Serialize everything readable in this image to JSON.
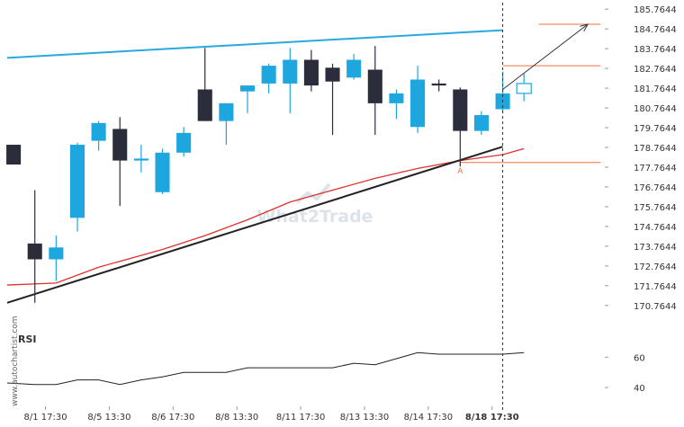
{
  "watermark_brand": "What2Trade",
  "vertical_credit": "www.autochartist.com",
  "point_label": "A",
  "colors": {
    "bull": "#1ea6df",
    "bear": "#2b2d3a",
    "resistance": "#2aa8e0",
    "support": "#222222",
    "ma": "#e03030",
    "level": "#f07040",
    "rsi": "#222222"
  },
  "chart_data": [
    {
      "type": "candlestick",
      "y_ticks": [
        185.7644,
        184.7644,
        183.7644,
        182.7644,
        181.7644,
        180.7644,
        179.7644,
        178.7644,
        177.7644,
        176.7644,
        175.7644,
        174.7644,
        173.7644,
        172.7644,
        171.7644,
        170.7644
      ],
      "ylim": [
        170.3,
        186.0
      ],
      "x_tick_labels": [
        "8/1 17:30",
        "8/5 13:30",
        "8/6 17:30",
        "8/8 13:30",
        "8/11 17:30",
        "8/13 13:30",
        "8/14 17:30",
        "8/18 17:30"
      ],
      "x_tick_positions": [
        1.5,
        4.5,
        7.5,
        10.5,
        13.5,
        16.5,
        19.5,
        22.5
      ],
      "highlight_tick": "8/18 17:30",
      "x_range": [
        -0.3,
        27.8
      ],
      "candles": [
        {
          "x": 0,
          "o": 178.9,
          "h": 178.9,
          "l": 177.9,
          "c": 177.9
        },
        {
          "x": 1,
          "o": 173.9,
          "h": 176.6,
          "l": 170.9,
          "c": 173.1
        },
        {
          "x": 2,
          "o": 173.1,
          "h": 174.3,
          "l": 172.0,
          "c": 173.7
        },
        {
          "x": 3,
          "o": 175.2,
          "h": 179.0,
          "l": 174.5,
          "c": 178.9
        },
        {
          "x": 4,
          "o": 179.1,
          "h": 180.1,
          "l": 178.6,
          "c": 180.0
        },
        {
          "x": 5,
          "o": 179.7,
          "h": 180.3,
          "l": 175.8,
          "c": 178.1
        },
        {
          "x": 6,
          "o": 178.1,
          "h": 178.9,
          "l": 177.5,
          "c": 178.2
        },
        {
          "x": 7,
          "o": 176.5,
          "h": 178.7,
          "l": 176.4,
          "c": 178.5
        },
        {
          "x": 8,
          "o": 178.5,
          "h": 179.8,
          "l": 178.3,
          "c": 179.5
        },
        {
          "x": 9,
          "o": 181.7,
          "h": 183.8,
          "l": 180.1,
          "c": 180.1
        },
        {
          "x": 10,
          "o": 180.1,
          "h": 181.0,
          "l": 178.9,
          "c": 181.0
        },
        {
          "x": 11,
          "o": 181.6,
          "h": 181.9,
          "l": 180.5,
          "c": 181.9
        },
        {
          "x": 12,
          "o": 182.0,
          "h": 183.0,
          "l": 181.5,
          "c": 182.9
        },
        {
          "x": 13,
          "o": 182.0,
          "h": 183.8,
          "l": 180.5,
          "c": 183.2
        },
        {
          "x": 14,
          "o": 183.2,
          "h": 183.7,
          "l": 181.6,
          "c": 181.9
        },
        {
          "x": 15,
          "o": 182.8,
          "h": 183.0,
          "l": 179.4,
          "c": 182.1
        },
        {
          "x": 16,
          "o": 182.3,
          "h": 183.5,
          "l": 182.2,
          "c": 183.2
        },
        {
          "x": 17,
          "o": 182.7,
          "h": 183.9,
          "l": 179.4,
          "c": 181.0
        },
        {
          "x": 18,
          "o": 181.0,
          "h": 181.7,
          "l": 180.2,
          "c": 181.5
        },
        {
          "x": 19,
          "o": 179.8,
          "h": 182.9,
          "l": 179.5,
          "c": 182.2
        },
        {
          "x": 20,
          "o": 182.0,
          "h": 182.2,
          "l": 181.6,
          "c": 181.9
        },
        {
          "x": 21,
          "o": 181.7,
          "h": 181.8,
          "l": 177.8,
          "c": 179.6
        },
        {
          "x": 22,
          "o": 179.6,
          "h": 180.6,
          "l": 179.4,
          "c": 180.4
        },
        {
          "x": 23,
          "o": 180.7,
          "h": 182.6,
          "l": 180.5,
          "c": 181.5
        },
        {
          "x": 24,
          "o": 181.5,
          "h": 182.5,
          "l": 181.1,
          "c": 182.0,
          "projected": true
        }
      ],
      "resistance_line": [
        [
          -0.3,
          183.3
        ],
        [
          23.0,
          184.7
        ]
      ],
      "support_line": [
        [
          -0.3,
          170.9
        ],
        [
          23.0,
          178.8
        ]
      ],
      "moving_average": [
        [
          -0.3,
          171.8
        ],
        [
          2,
          171.9
        ],
        [
          4,
          172.7
        ],
        [
          6,
          173.3
        ],
        [
          7,
          173.6
        ],
        [
          9,
          174.3
        ],
        [
          11,
          175.1
        ],
        [
          13,
          176.0
        ],
        [
          15,
          176.6
        ],
        [
          17,
          177.2
        ],
        [
          19,
          177.7
        ],
        [
          21,
          178.1
        ],
        [
          23,
          178.4
        ],
        [
          24,
          178.7
        ]
      ],
      "levels": [
        {
          "price": 185.0,
          "x_start": 24.7,
          "x_end": 27.6
        },
        {
          "price": 182.9,
          "x_start": 23.0,
          "x_end": 27.6
        },
        {
          "price": 178.0,
          "x_start": 21.0,
          "x_end": 27.6
        }
      ],
      "projection_arrow": [
        [
          23.0,
          181.7
        ],
        [
          27.0,
          185.0
        ]
      ],
      "current_time_x": 23.0,
      "point_a": {
        "x": 21.0,
        "price": 178.0
      },
      "rsi": {
        "title": "RSI",
        "y_ticks": [
          60,
          40
        ],
        "ylim": [
          30,
          75
        ],
        "values": [
          [
            -0.3,
            43
          ],
          [
            1,
            42
          ],
          [
            2,
            42
          ],
          [
            3,
            45
          ],
          [
            4,
            45
          ],
          [
            5,
            42
          ],
          [
            6,
            45
          ],
          [
            7,
            47
          ],
          [
            8,
            50
          ],
          [
            9,
            50
          ],
          [
            10,
            50
          ],
          [
            11,
            53
          ],
          [
            12,
            53
          ],
          [
            13,
            53
          ],
          [
            14,
            53
          ],
          [
            15,
            53
          ],
          [
            16,
            56
          ],
          [
            17,
            55
          ],
          [
            18,
            59
          ],
          [
            19,
            63
          ],
          [
            20,
            62
          ],
          [
            21,
            62
          ],
          [
            22,
            62
          ],
          [
            23,
            62
          ],
          [
            24,
            63
          ]
        ]
      }
    }
  ]
}
